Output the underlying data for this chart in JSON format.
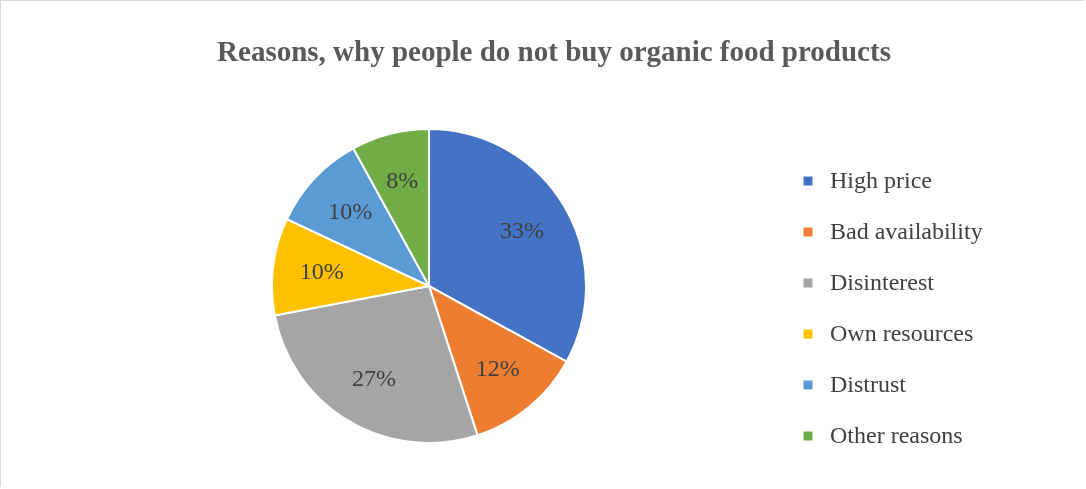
{
  "chart_data": {
    "type": "pie",
    "title": "Reasons, why people do not buy organic food products",
    "categories": [
      "High price",
      "Bad availability",
      "Disinterest",
      "Own resources",
      "Distrust",
      "Other reasons"
    ],
    "values": [
      33,
      12,
      27,
      10,
      10,
      8
    ],
    "value_labels": [
      "33%",
      "12%",
      "27%",
      "10%",
      "10%",
      "8%"
    ],
    "colors": [
      "#4472c4",
      "#ed7d31",
      "#a5a5a5",
      "#ffc000",
      "#5b9bd5",
      "#70ad47"
    ],
    "legend": "right"
  }
}
